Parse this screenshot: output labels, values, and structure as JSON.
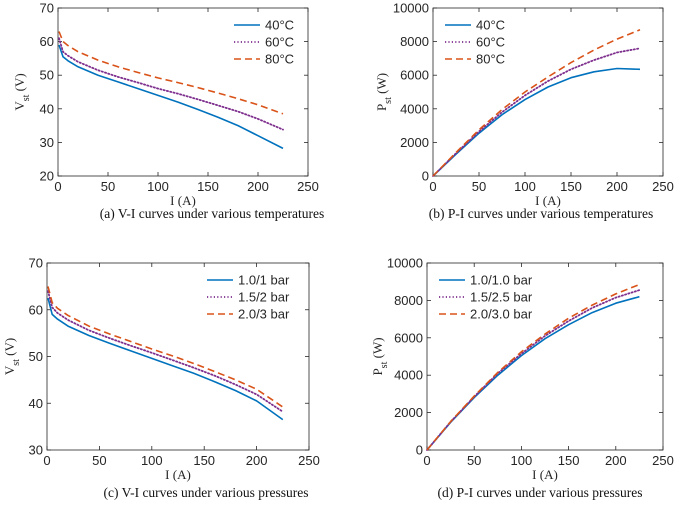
{
  "colors": {
    "series1": "#0072BD",
    "series2": "#7E2F8E",
    "series3": "#D95319",
    "axis": "#262626"
  },
  "chart_data": [
    {
      "type": "line",
      "panel": "a",
      "caption": "(a)   V-I curves under various temperatures",
      "xlabel": "I (A)",
      "ylabel_main": "V",
      "ylabel_sub": "st",
      "ylabel_unit": " (V)",
      "xlim": [
        0,
        250
      ],
      "ylim": [
        20,
        70
      ],
      "xticks": [
        "0",
        "50",
        "100",
        "150",
        "200",
        "250"
      ],
      "yticks": [
        "20",
        "30",
        "40",
        "50",
        "60",
        "70"
      ],
      "legend_position": "top-right",
      "grid": false,
      "x": [
        1,
        5,
        10,
        20,
        40,
        60,
        80,
        100,
        120,
        140,
        160,
        180,
        200,
        225
      ],
      "series": [
        {
          "name": "40°C",
          "style": "solid",
          "values": [
            59.0,
            55.5,
            54.3,
            52.5,
            50.0,
            48.0,
            46.0,
            44.0,
            42.0,
            39.8,
            37.5,
            35.0,
            32.0,
            28.2
          ]
        },
        {
          "name": "60°C",
          "style": "dotted",
          "values": [
            61.0,
            57.0,
            55.8,
            54.0,
            51.5,
            49.5,
            47.8,
            46.0,
            44.5,
            42.8,
            41.0,
            39.2,
            37.0,
            33.8
          ]
        },
        {
          "name": "80°C",
          "style": "dashed",
          "values": [
            63.0,
            60.0,
            58.8,
            57.0,
            54.5,
            52.5,
            50.8,
            49.2,
            47.8,
            46.3,
            44.7,
            43.0,
            41.2,
            38.5
          ]
        }
      ]
    },
    {
      "type": "line",
      "panel": "b",
      "caption": "(b)   P-I curves under various temperatures",
      "xlabel": "I (A)",
      "ylabel_main": "P",
      "ylabel_sub": "st",
      "ylabel_unit": " (W)",
      "xlim": [
        0,
        250
      ],
      "ylim": [
        0,
        10000
      ],
      "xticks": [
        "0",
        "50",
        "100",
        "150",
        "200",
        "250"
      ],
      "yticks": [
        "0",
        "2000",
        "4000",
        "6000",
        "8000",
        "10000"
      ],
      "legend_position": "top-left",
      "grid": false,
      "x": [
        0,
        25,
        50,
        75,
        100,
        125,
        150,
        175,
        200,
        225
      ],
      "series": [
        {
          "name": "40°C",
          "style": "solid",
          "values": [
            0,
            1300,
            2550,
            3650,
            4550,
            5300,
            5850,
            6200,
            6400,
            6350
          ]
        },
        {
          "name": "60°C",
          "style": "dotted",
          "values": [
            0,
            1350,
            2650,
            3800,
            4800,
            5650,
            6350,
            6900,
            7350,
            7600
          ]
        },
        {
          "name": "80°C",
          "style": "dashed",
          "values": [
            0,
            1400,
            2750,
            3950,
            5000,
            5900,
            6750,
            7500,
            8150,
            8700
          ]
        }
      ]
    },
    {
      "type": "line",
      "panel": "c",
      "caption": "(c)   V-I curves under various pressures",
      "xlabel": "I (A)",
      "ylabel_main": "V",
      "ylabel_sub": "st",
      "ylabel_unit": " (V)",
      "xlim": [
        0,
        250
      ],
      "ylim": [
        30,
        70
      ],
      "xticks": [
        "0",
        "50",
        "100",
        "150",
        "200",
        "250"
      ],
      "yticks": [
        "30",
        "40",
        "50",
        "60",
        "70"
      ],
      "legend_position": "top-right",
      "grid": false,
      "x": [
        1,
        5,
        10,
        20,
        40,
        60,
        80,
        100,
        120,
        140,
        160,
        180,
        200,
        225
      ],
      "series": [
        {
          "name": "1.0/1 bar",
          "style": "solid",
          "values": [
            62.5,
            59.0,
            58.0,
            56.5,
            54.5,
            52.8,
            51.2,
            49.6,
            48.0,
            46.4,
            44.6,
            42.7,
            40.5,
            36.5
          ]
        },
        {
          "name": "1.5/2 bar",
          "style": "dotted",
          "values": [
            64.0,
            60.5,
            59.3,
            57.8,
            55.6,
            53.9,
            52.3,
            50.8,
            49.2,
            47.6,
            45.9,
            44.0,
            41.9,
            38.2
          ]
        },
        {
          "name": "2.0/3 bar",
          "style": "dashed",
          "values": [
            65.0,
            61.5,
            60.3,
            58.8,
            56.5,
            54.8,
            53.2,
            51.6,
            50.1,
            48.5,
            46.8,
            45.0,
            43.0,
            39.2
          ]
        }
      ]
    },
    {
      "type": "line",
      "panel": "d",
      "caption": "(d)   P-I curves under various pressures",
      "xlabel": "I (A)",
      "ylabel_main": "P",
      "ylabel_sub": "st",
      "ylabel_unit": " (W)",
      "xlim": [
        0,
        250
      ],
      "ylim": [
        0,
        10000
      ],
      "xticks": [
        "0",
        "50",
        "100",
        "150",
        "200",
        "250"
      ],
      "yticks": [
        "0",
        "2000",
        "4000",
        "6000",
        "8000",
        "10000"
      ],
      "legend_position": "top-left",
      "grid": false,
      "x": [
        0,
        25,
        50,
        75,
        100,
        125,
        150,
        175,
        200,
        225
      ],
      "series": [
        {
          "name": "1.0/1.0 bar",
          "style": "solid",
          "values": [
            0,
            1480,
            2800,
            4000,
            5050,
            5950,
            6700,
            7350,
            7850,
            8200
          ]
        },
        {
          "name": "1.5/2.5 bar",
          "style": "dotted",
          "values": [
            0,
            1500,
            2850,
            4100,
            5150,
            6100,
            6900,
            7600,
            8150,
            8550
          ]
        },
        {
          "name": "2.0/3.0 bar",
          "style": "dashed",
          "values": [
            0,
            1520,
            2880,
            4150,
            5250,
            6200,
            7050,
            7750,
            8350,
            8850
          ]
        }
      ]
    }
  ]
}
